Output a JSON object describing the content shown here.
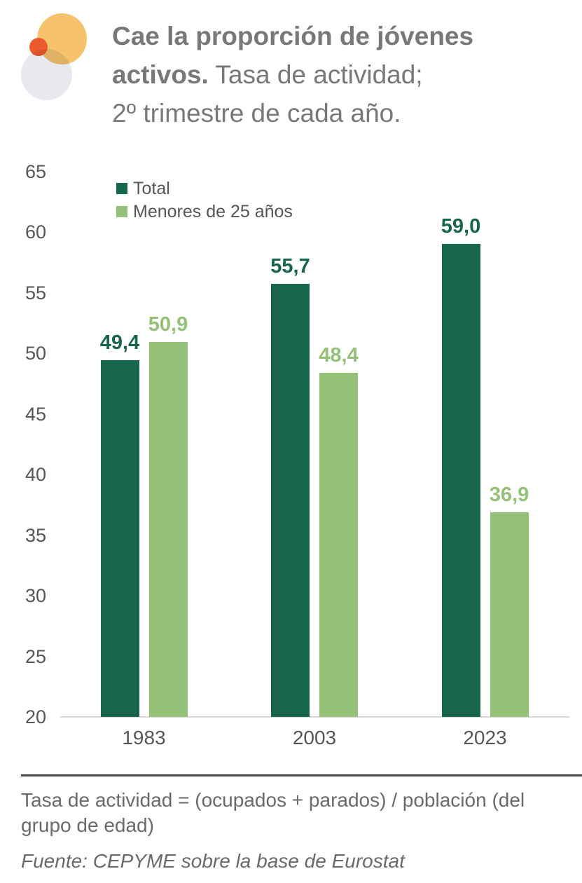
{
  "title": {
    "line1_bold": "Cae la proporción de jóvenes",
    "line2_bold": "activos.",
    "line2_regular": " Tasa de actividad;",
    "line3_regular": "2º trimestre de cada año."
  },
  "chart_data": {
    "type": "bar",
    "title": "Cae la proporción de jóvenes activos. Tasa de actividad; 2º trimestre de cada año.",
    "categories": [
      "1983",
      "2003",
      "2023"
    ],
    "series": [
      {
        "name": "Total",
        "color": "#17654d",
        "values": [
          49.4,
          55.7,
          59.0
        ]
      },
      {
        "name": "Menores de 25 años",
        "color": "#94c177",
        "values": [
          50.9,
          48.4,
          36.9
        ]
      }
    ],
    "ylim": [
      20,
      65
    ],
    "yticks": [
      20,
      25,
      30,
      35,
      40,
      45,
      50,
      55,
      60,
      65
    ],
    "grid": false,
    "legend_position": "top-left",
    "value_label_decimal_separator": ","
  },
  "footer": {
    "note": "Tasa de actividad = (ocupados + parados) / población (del grupo de edad)",
    "source": "Fuente: CEPYME sobre la base de Eurostat"
  },
  "colors": {
    "title_text": "#77787b",
    "axis_text": "#54565a",
    "baseline": "#d8d8d8",
    "footer_text": "#696a6c",
    "rule": "#454545",
    "logo_yellow": "#f6c26b",
    "logo_red": "#ee5a2c",
    "logo_gray": "#e8e9ef"
  }
}
